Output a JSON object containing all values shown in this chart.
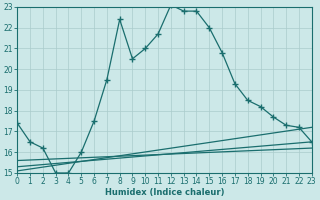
{
  "xlabel": "Humidex (Indice chaleur)",
  "bg_color": "#cce8e8",
  "grid_color": "#aacccc",
  "line_color": "#1a6e6e",
  "xlim": [
    0,
    23
  ],
  "ylim": [
    15,
    23
  ],
  "yticks": [
    15,
    16,
    17,
    18,
    19,
    20,
    21,
    22,
    23
  ],
  "xticks": [
    0,
    1,
    2,
    3,
    4,
    5,
    6,
    7,
    8,
    9,
    10,
    11,
    12,
    13,
    14,
    15,
    16,
    17,
    18,
    19,
    20,
    21,
    22,
    23
  ],
  "main_x": [
    0,
    1,
    2,
    3,
    4,
    5,
    6,
    7,
    8,
    9,
    10,
    11,
    12,
    13,
    14,
    15,
    16,
    17,
    18,
    19,
    20,
    21,
    22,
    23
  ],
  "main_y": [
    17.4,
    16.5,
    16.2,
    15.0,
    15.0,
    16.0,
    17.5,
    19.5,
    22.4,
    20.5,
    21.0,
    21.7,
    23.1,
    22.8,
    22.8,
    22.0,
    20.8,
    19.3,
    18.5,
    18.2,
    17.7,
    17.3,
    17.2,
    16.5
  ],
  "line2_x": [
    0,
    23
  ],
  "line2_y": [
    15.1,
    17.2
  ],
  "line3_x": [
    0,
    23
  ],
  "line3_y": [
    15.3,
    16.5
  ],
  "line4_x": [
    0,
    23
  ],
  "line4_y": [
    15.6,
    16.2
  ]
}
